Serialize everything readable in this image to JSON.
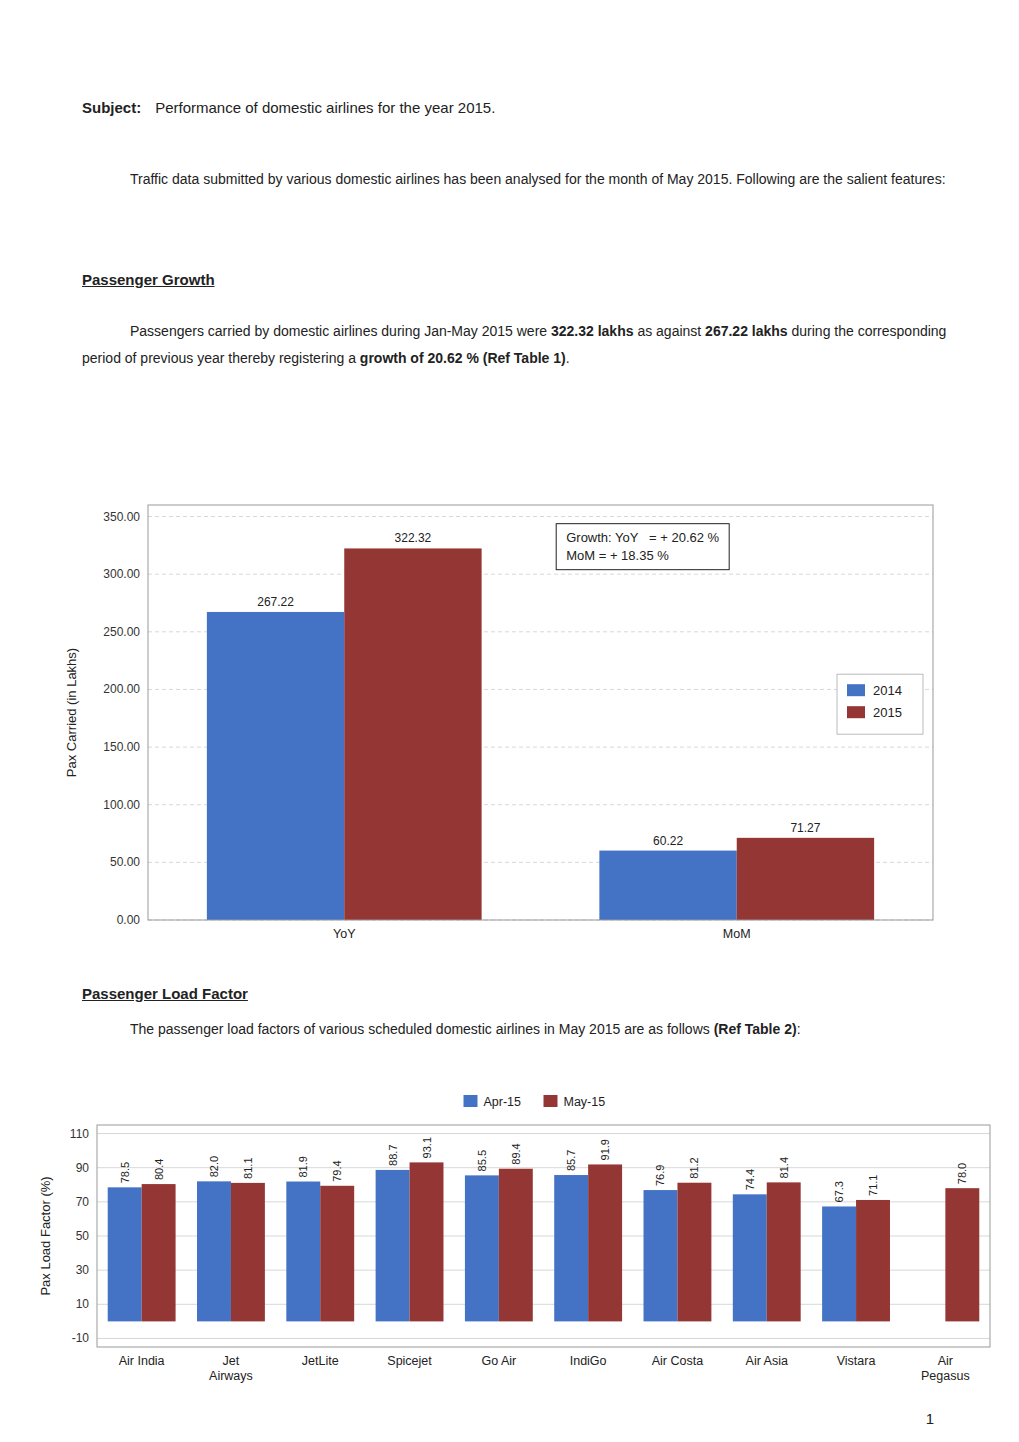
{
  "page_text": {
    "subject_bold": "Subject:",
    "subject_text": "Performance of domestic airlines for the year 2015.",
    "para1": "Traffic data submitted by various domestic airlines has been analysed for the month of May 2015. Following are the salient features:",
    "section1_title": "Passenger Growth",
    "para2": [
      "Passengers carried by domestic airlines during Jan-May 2015 were ",
      "322.32 lakhs",
      " as against ",
      "267.22 lakhs",
      " during the corresponding period of previous year thereby registering a ",
      "growth of 20.62 % (Ref Table 1)",
      "."
    ],
    "section2_title": "Passenger Load Factor",
    "para3": [
      "The passenger load factors of various scheduled domestic airlines in May 2015 are as follows ",
      "(Ref Table 2)",
      ":"
    ],
    "page_number": "1"
  },
  "chart_data": [
    {
      "type": "bar",
      "categories": [
        "YoY",
        "MoM"
      ],
      "series": [
        {
          "name": "2014",
          "color": "#4472C4",
          "values": [
            267.22,
            60.22
          ]
        },
        {
          "name": "2015",
          "color": "#943634",
          "values": [
            322.32,
            71.27
          ]
        }
      ],
      "y_label": "Pax Carried (in Lakhs)",
      "ylim": [
        0,
        360
      ],
      "yticks": [
        {
          "value": 0,
          "label": "0.00"
        },
        {
          "value": 50,
          "label": "50.00"
        },
        {
          "value": 100,
          "label": "100.00"
        },
        {
          "value": 150,
          "label": "150.00"
        },
        {
          "value": 200,
          "label": "200.00"
        },
        {
          "value": 250,
          "label": "250.00"
        },
        {
          "value": 300,
          "label": "300.00"
        },
        {
          "value": 350,
          "label": "350.00"
        }
      ],
      "grid": true,
      "legend": "right",
      "data_labels": true,
      "annotations": [
        "Growth: YoY   = + 20.62 %",
        "MoM = + 18.35 %"
      ]
    },
    {
      "type": "bar",
      "categories": [
        "Air India",
        "Jet\nAirways",
        "JetLite",
        "Spicejet",
        "Go Air",
        "IndiGo",
        "Air Costa",
        "Air Asia",
        "Vistara",
        "Air\nPegasus"
      ],
      "series": [
        {
          "name": "Apr-15",
          "color": "#4472C4",
          "values": [
            78.5,
            82.0,
            81.9,
            88.7,
            85.5,
            85.7,
            76.9,
            74.4,
            67.3,
            null
          ],
          "value_labels": [
            "78.5",
            "82.0",
            "81.9",
            "88.7",
            "85.5",
            "85.7",
            "76.9",
            "74.4",
            "67.3",
            null
          ]
        },
        {
          "name": "May-15",
          "color": "#943634",
          "values": [
            80.4,
            81.1,
            79.4,
            93.1,
            89.4,
            91.9,
            81.2,
            81.4,
            71.1,
            78.0
          ],
          "value_labels": [
            "80.4",
            "81.1",
            "79.4",
            "93.1",
            "89.4",
            "91.9",
            "81.2",
            "81.4",
            "71.1",
            "78.0"
          ]
        }
      ],
      "y_label": "Pax Load Factor (%)",
      "ylim": [
        -15,
        115
      ],
      "yticks": [
        -10,
        10,
        30,
        50,
        70,
        90,
        110
      ],
      "grid": true,
      "legend": "top",
      "data_labels": true
    }
  ]
}
